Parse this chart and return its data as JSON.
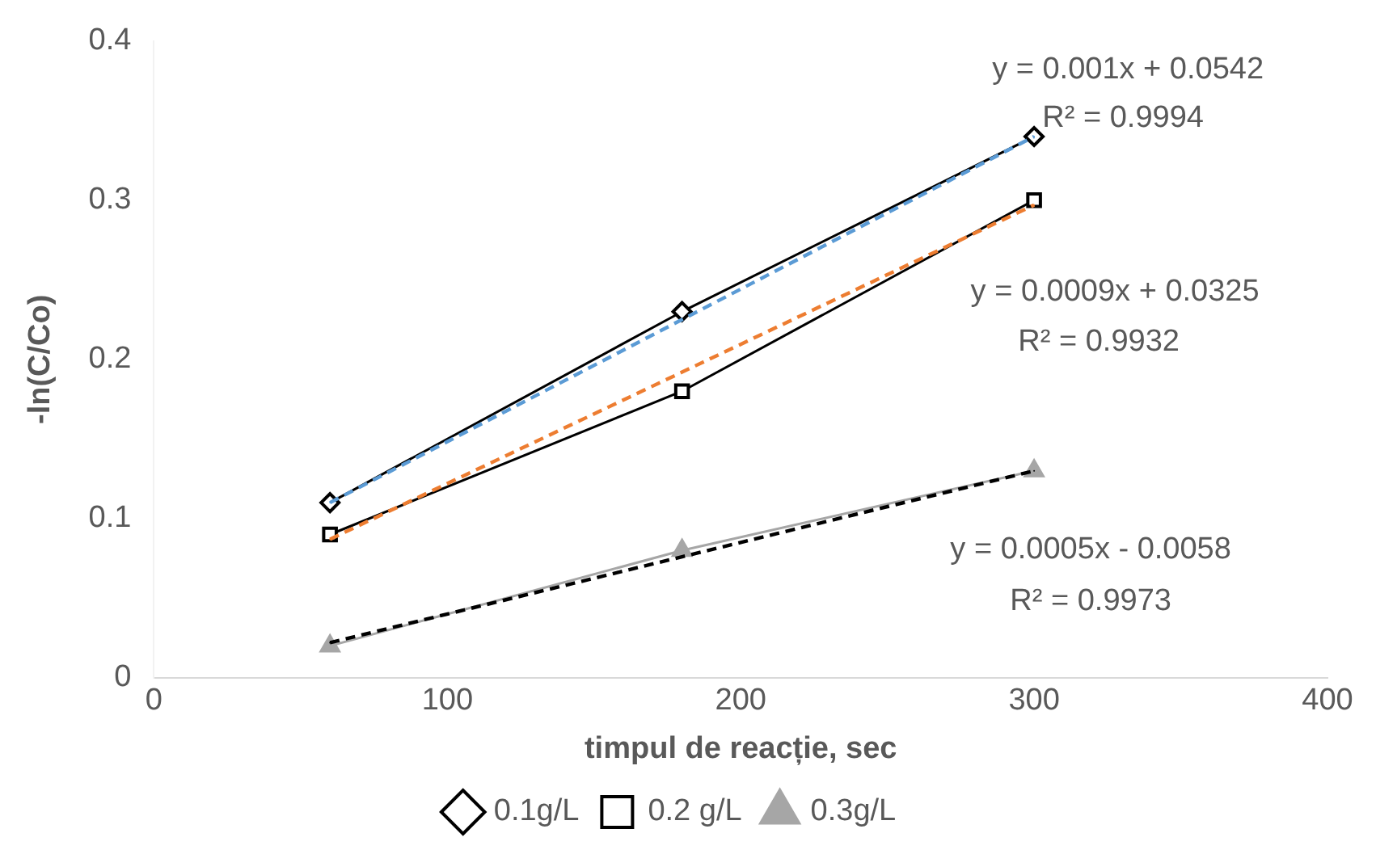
{
  "chart_data": {
    "type": "line",
    "xlabel": "timpul de reacție, sec",
    "ylabel": "-ln(C/Co)",
    "x": [
      60,
      180,
      300
    ],
    "xlim": [
      0,
      400
    ],
    "xticks": [
      0,
      100,
      200,
      300,
      400
    ],
    "ylim": [
      0,
      0.4
    ],
    "yticks": [
      0,
      0.1,
      0.2,
      0.3,
      0.4
    ],
    "grid": false,
    "legend": "bottom",
    "series": [
      {
        "name": "0.1g/L",
        "color": "#000000",
        "marker": "diamond",
        "line_style": "solid",
        "values": [
          0.11,
          0.23,
          0.34
        ]
      },
      {
        "name": "0.2 g/L",
        "color": "#000000",
        "marker": "square",
        "line_style": "solid",
        "values": [
          0.09,
          0.18,
          0.3
        ]
      },
      {
        "name": "0.3g/L",
        "color": "#a6a6a6",
        "marker": "triangle",
        "line_style": "solid",
        "values": [
          0.02,
          0.08,
          0.13
        ]
      },
      {
        "type": "line",
        "color": "#5b9bd5",
        "marker": "none",
        "line_style": "dashed",
        "values": [
          0.11,
          0.225,
          0.34
        ]
      },
      {
        "type": "line",
        "color": "#ed7d31",
        "marker": "none",
        "line_style": "dashed",
        "values": [
          0.087,
          0.192,
          0.297
        ]
      },
      {
        "type": "line",
        "color": "#000000",
        "marker": "none",
        "line_style": "dashed",
        "values": [
          0.022,
          0.076,
          0.13
        ]
      }
    ],
    "annotations": [
      "y = 0.001x + 0.0542",
      "R² = 0.9994",
      "y = 0.0009x + 0.0325",
      "R² = 0.9932",
      "y = 0.0005x - 0.0058",
      "R² = 0.9973"
    ]
  }
}
